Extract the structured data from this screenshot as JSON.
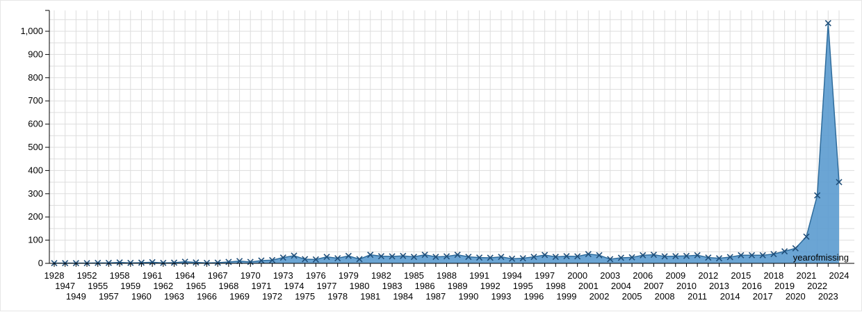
{
  "chart_data": {
    "type": "area",
    "xlabel": "yearofmissing",
    "ylabel": "",
    "ylim": [
      0,
      1070
    ],
    "y_ticks": [
      0,
      100,
      200,
      300,
      400,
      500,
      600,
      700,
      800,
      900,
      1000
    ],
    "y_tick_labels": [
      "0",
      "100",
      "200",
      "300",
      "400",
      "500",
      "600",
      "700",
      "800",
      "900",
      "1,000"
    ],
    "grid": true,
    "marker": "x",
    "colors": {
      "fill": "#5b9bcf",
      "line": "#2f6c9c",
      "marker": "#1f4e79",
      "grid": "#dddddd",
      "axis": "#000000"
    },
    "categories": [
      "1928",
      "1947",
      "1949",
      "1952",
      "1955",
      "1957",
      "1958",
      "1959",
      "1960",
      "1961",
      "1962",
      "1963",
      "1964",
      "1965",
      "1966",
      "1967",
      "1968",
      "1969",
      "1970",
      "1971",
      "1972",
      "1973",
      "1974",
      "1975",
      "1976",
      "1977",
      "1978",
      "1979",
      "1980",
      "1981",
      "1982",
      "1983",
      "1984",
      "1985",
      "1986",
      "1987",
      "1988",
      "1989",
      "1990",
      "1991",
      "1992",
      "1993",
      "1994",
      "1995",
      "1996",
      "1997",
      "1998",
      "1999",
      "2000",
      "2001",
      "2002",
      "2003",
      "2004",
      "2005",
      "2006",
      "2007",
      "2008",
      "2009",
      "2010",
      "2011",
      "2012",
      "2013",
      "2014",
      "2015",
      "2016",
      "2017",
      "2018",
      "2019",
      "2020",
      "2021",
      "2022",
      "2023",
      "2024"
    ],
    "series": [
      {
        "values": [
          1,
          1,
          1,
          1,
          2,
          2,
          4,
          2,
          3,
          5,
          2,
          3,
          7,
          4,
          2,
          3,
          6,
          10,
          6,
          12,
          14,
          25,
          33,
          18,
          17,
          28,
          22,
          32,
          18,
          37,
          31,
          30,
          32,
          28,
          37,
          28,
          30,
          37,
          28,
          25,
          24,
          28,
          20,
          22,
          28,
          36,
          28,
          31,
          30,
          40,
          35,
          18,
          24,
          26,
          35,
          37,
          30,
          31,
          32,
          35,
          25,
          22,
          27,
          35,
          35,
          35,
          40,
          52,
          65,
          115,
          293,
          1035,
          350
        ]
      }
    ]
  }
}
